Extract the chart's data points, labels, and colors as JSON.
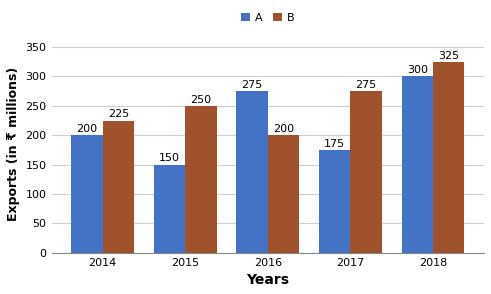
{
  "years": [
    "2014",
    "2015",
    "2016",
    "2017",
    "2018"
  ],
  "series_A": [
    200,
    150,
    275,
    175,
    300
  ],
  "series_B": [
    225,
    250,
    200,
    275,
    325
  ],
  "color_A": "#4472C4",
  "color_B": "#A0522D",
  "xlabel": "Years",
  "ylabel": "Exports (in ₹ millions)",
  "ylim": [
    0,
    370
  ],
  "yticks": [
    0,
    50,
    100,
    150,
    200,
    250,
    300,
    350
  ],
  "legend_labels": [
    "A",
    "B"
  ],
  "bar_width": 0.38,
  "background_color": "#ffffff",
  "label_fontsize": 8,
  "axis_label_fontsize": 10,
  "tick_fontsize": 8,
  "legend_fontsize": 8
}
